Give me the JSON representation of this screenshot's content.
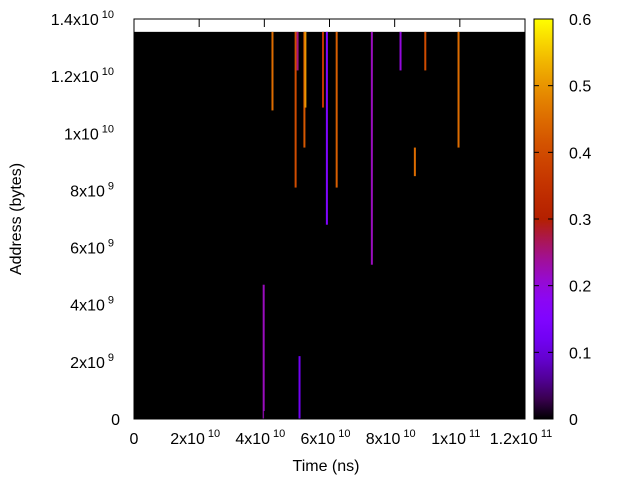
{
  "chart_data": {
    "type": "heatmap",
    "title": "",
    "xlabel": "Time (ns)",
    "ylabel": "Address (bytes)",
    "xlim": [
      0,
      120000000000
    ],
    "ylim": [
      0,
      14000000000
    ],
    "data_ymax": 13550000000,
    "background_color": "#000000",
    "colormap": "gnuplot-pm3d",
    "colorbar": {
      "min": 0,
      "max": 0.6,
      "ticks": [
        "0",
        "0.1",
        "0.2",
        "0.3",
        "0.4",
        "0.5",
        "0.6"
      ]
    },
    "x_ticks": [
      {
        "base": "0",
        "exp": ""
      },
      {
        "base": "2x10",
        "exp": "10"
      },
      {
        "base": "4x10",
        "exp": "10"
      },
      {
        "base": "6x10",
        "exp": "10"
      },
      {
        "base": "8x10",
        "exp": "10"
      },
      {
        "base": "1x10",
        "exp": "11"
      },
      {
        "base": "1.2x10",
        "exp": "11"
      }
    ],
    "y_ticks": [
      {
        "base": "0",
        "exp": ""
      },
      {
        "base": "2x10",
        "exp": "9"
      },
      {
        "base": "4x10",
        "exp": "9"
      },
      {
        "base": "6x10",
        "exp": "9"
      },
      {
        "base": "8x10",
        "exp": "9"
      },
      {
        "base": "1x10",
        "exp": "10"
      },
      {
        "base": "1.2x10",
        "exp": "10"
      },
      {
        "base": "1.4x10",
        "exp": "10"
      }
    ],
    "x_tick_values": [
      0,
      20000000000,
      40000000000,
      60000000000,
      80000000000,
      100000000000,
      120000000000
    ],
    "y_tick_values": [
      0,
      2000000000,
      4000000000,
      6000000000,
      8000000000,
      10000000000,
      12000000000,
      14000000000
    ],
    "cb_tick_values": [
      0,
      0.1,
      0.2,
      0.3,
      0.4,
      0.5,
      0.6
    ],
    "points": [
      {
        "t": 39800000000,
        "y0": 0,
        "y1": 4700000000,
        "v": 0.22
      },
      {
        "t": 50800000000,
        "y0": 0,
        "y1": 2200000000,
        "v": 0.12
      },
      {
        "t": 42500000000,
        "y0": 10800000000,
        "y1": 13550000000,
        "v": 0.45
      },
      {
        "t": 49600000000,
        "y0": 8100000000,
        "y1": 13550000000,
        "v": 0.4
      },
      {
        "t": 50200000000,
        "y0": 12200000000,
        "y1": 13550000000,
        "v": 0.25
      },
      {
        "t": 52300000000,
        "y0": 9500000000,
        "y1": 13550000000,
        "v": 0.42
      },
      {
        "t": 52600000000,
        "y0": 10900000000,
        "y1": 13550000000,
        "v": 0.5
      },
      {
        "t": 58000000000,
        "y0": 10900000000,
        "y1": 13550000000,
        "v": 0.35
      },
      {
        "t": 59200000000,
        "y0": 6800000000,
        "y1": 13550000000,
        "v": 0.15
      },
      {
        "t": 62200000000,
        "y0": 8100000000,
        "y1": 13550000000,
        "v": 0.43
      },
      {
        "t": 73000000000,
        "y0": 5400000000,
        "y1": 13550000000,
        "v": 0.22
      },
      {
        "t": 81800000000,
        "y0": 12200000000,
        "y1": 13550000000,
        "v": 0.2
      },
      {
        "t": 86200000000,
        "y0": 8500000000,
        "y1": 9500000000,
        "v": 0.45
      },
      {
        "t": 89400000000,
        "y0": 12200000000,
        "y1": 13550000000,
        "v": 0.4
      },
      {
        "t": 99600000000,
        "y0": 9500000000,
        "y1": 13550000000,
        "v": 0.45
      }
    ]
  }
}
